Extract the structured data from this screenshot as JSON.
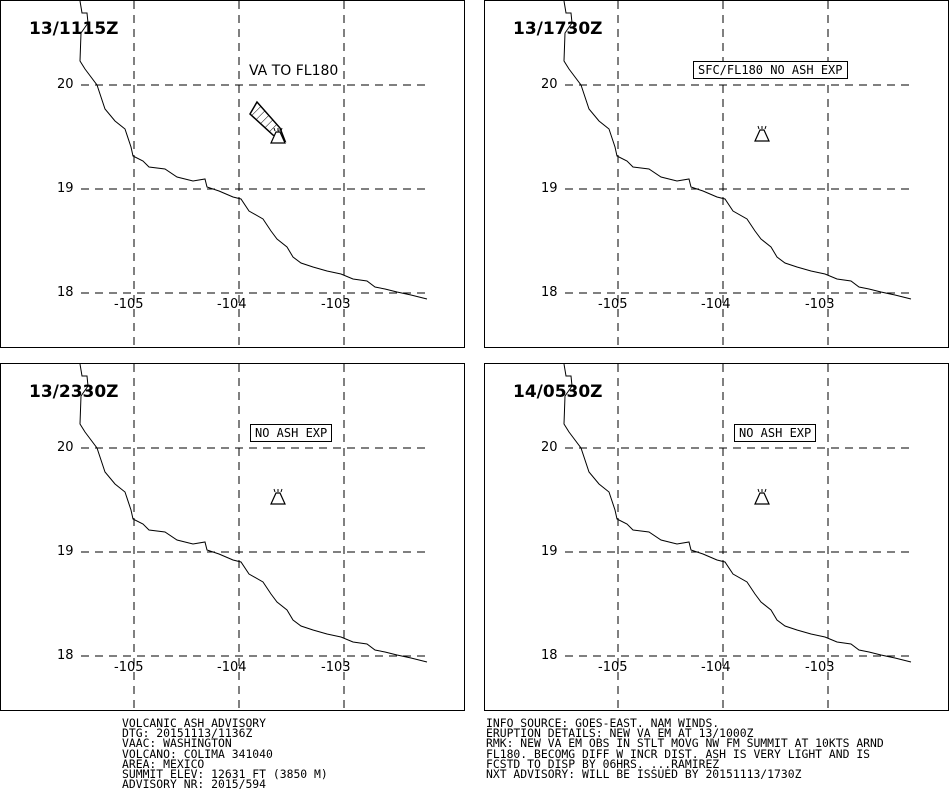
{
  "map": {
    "latitudes": [
      "20",
      "19",
      "18"
    ],
    "longitudes": [
      "-105",
      "-104",
      "-103"
    ]
  },
  "panels": [
    {
      "title": "13/1115Z",
      "note": "VA TO FL180",
      "note_style": "plain",
      "ash_area": true
    },
    {
      "title": "13/1730Z",
      "note": "SFC/FL180 NO ASH EXP",
      "note_style": "boxed",
      "ash_area": false
    },
    {
      "title": "13/2330Z",
      "note": "NO ASH EXP",
      "note_style": "boxed",
      "ash_area": false
    },
    {
      "title": "14/0530Z",
      "note": "NO ASH EXP",
      "note_style": "boxed",
      "ash_area": false
    }
  ],
  "advisory_left": [
    "VOLCANIC ASH ADVISORY",
    "DTG: 20151113/1136Z",
    "VAAC: WASHINGTON",
    "VOLCANO: COLIMA 341040",
    "AREA: MEXICO",
    "SUMMIT ELEV: 12631 FT (3850 M)",
    "ADVISORY NR: 2015/594"
  ],
  "advisory_right": [
    "INFO SOURCE: GOES-EAST. NAM WINDS.",
    "ERUPTION DETAILS: NEW VA EM AT 13/1000Z",
    "RMK: NEW VA EM OBS IN STLT MOVG NW FM SUMMIT AT 10KTS ARND",
    "FL180. BECOMG DIFF W INCR DIST. ASH IS VERY LIGHT AND IS",
    "FCSTD TO DISP BY 06HRS. ...RAMIREZ",
    "NXT ADVISORY: WILL BE ISSUED BY 20151113/1730Z"
  ],
  "icons": {
    "volcano": "volcano-icon",
    "ash_area": "ash-cloud-area"
  }
}
